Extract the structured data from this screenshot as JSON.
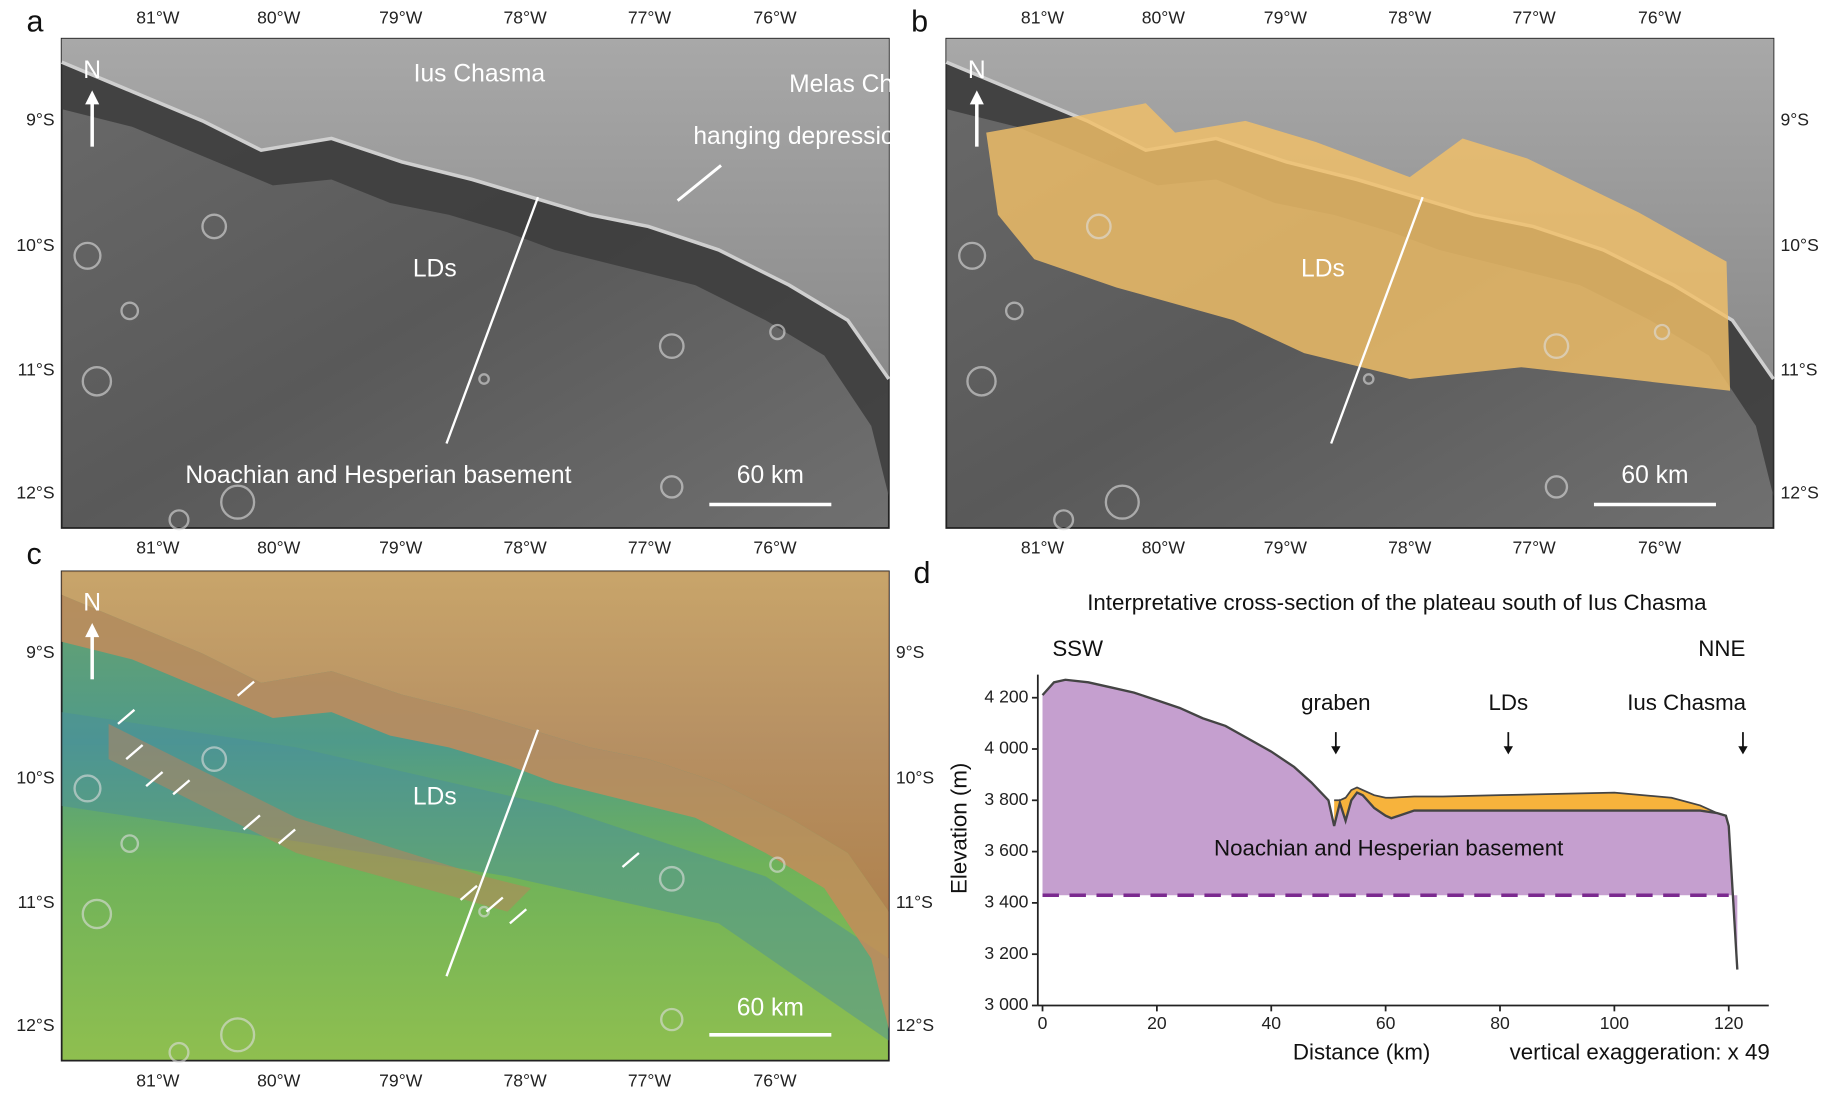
{
  "panels": [
    {
      "letter": "a",
      "north": "N",
      "scale": "60 km",
      "labels": [
        "Ius Chasma",
        "Melas Chasma",
        "hanging depression",
        "LDs",
        "Noachian and Hesperian basement"
      ]
    },
    {
      "letter": "b",
      "north": "N",
      "scale": "60 km",
      "labels": [
        "LDs"
      ]
    },
    {
      "letter": "c",
      "north": "N",
      "scale": "60 km",
      "labels": [
        "LDs"
      ]
    }
  ],
  "map_axes": {
    "lon": [
      "81°W",
      "80°W",
      "79°W",
      "78°W",
      "77°W",
      "76°W"
    ],
    "lat": [
      "9°S",
      "10°S",
      "11°S",
      "12°S"
    ]
  },
  "chart_data": {
    "type": "area",
    "letter": "d",
    "title": "Interpretative cross-section of the plateau south of Ius Chasma",
    "directions": [
      "SSW",
      "NNE"
    ],
    "annotations": [
      "graben",
      "Ius Chasma"
    ],
    "x_label": "Distance (km)",
    "y_label": "Elevation (m)",
    "note": "vertical exaggeration: x 49",
    "x": [
      0,
      2,
      4,
      8,
      12,
      16,
      20,
      24,
      28,
      32,
      36,
      40,
      44,
      47,
      50,
      51,
      52,
      53,
      54,
      55,
      56,
      58,
      60,
      61,
      65,
      70,
      80,
      90,
      100,
      110,
      115,
      118,
      119.5,
      120,
      121.5
    ],
    "series": [
      {
        "name": "Noachian and Hesperian basement",
        "color": "#c59fcf",
        "values": [
          4210,
          4260,
          4270,
          4260,
          4240,
          4220,
          4190,
          4160,
          4120,
          4090,
          4040,
          3990,
          3930,
          3870,
          3800,
          3700,
          3790,
          3720,
          3800,
          3830,
          3820,
          3770,
          3740,
          3730,
          3760,
          3760,
          3760,
          3760,
          3760,
          3760,
          3760,
          3750,
          3740,
          3700,
          3140
        ]
      },
      {
        "name": "LDs",
        "color": "#f7b33c",
        "values": [
          null,
          null,
          null,
          null,
          null,
          null,
          null,
          null,
          null,
          null,
          null,
          null,
          null,
          null,
          null,
          3800,
          3800,
          3810,
          3840,
          3850,
          3840,
          3820,
          3810,
          3810,
          3815,
          3815,
          3820,
          3825,
          3830,
          3810,
          3780,
          3750,
          null,
          null,
          null
        ]
      }
    ],
    "basement_base": 3430,
    "basement_base_color": "#7b2a8f",
    "xlim": [
      0,
      127
    ],
    "ylim": [
      3000,
      4290
    ],
    "xticks": [
      0,
      20,
      40,
      60,
      80,
      100,
      120
    ],
    "yticks": [
      {
        "value": 3000,
        "label": "3 000"
      },
      {
        "value": 3200,
        "label": "3 200"
      },
      {
        "value": 3400,
        "label": "3 400"
      },
      {
        "value": 3600,
        "label": "3 600"
      },
      {
        "value": 3800,
        "label": "3 800"
      },
      {
        "value": 4000,
        "label": "4 000"
      },
      {
        "value": 4200,
        "label": "4 200"
      }
    ]
  }
}
